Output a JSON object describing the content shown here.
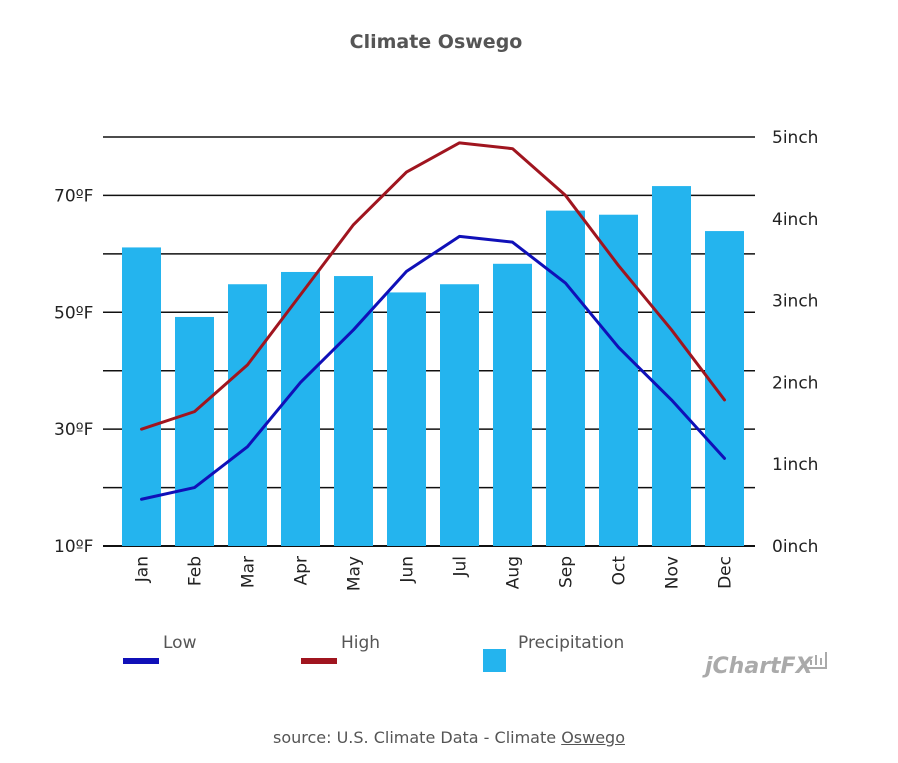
{
  "chart_data": {
    "type": "bar",
    "title": "Climate Oswego",
    "categories": [
      "Jan",
      "Feb",
      "Mar",
      "Apr",
      "May",
      "Jun",
      "Jul",
      "Aug",
      "Sep",
      "Oct",
      "Nov",
      "Dec"
    ],
    "series": [
      {
        "name": "Low",
        "type": "line",
        "axis": "left",
        "color": "#1010b8",
        "values": [
          18,
          20,
          27,
          38,
          47,
          57,
          63,
          62,
          55,
          44,
          35,
          25
        ]
      },
      {
        "name": "High",
        "type": "line",
        "axis": "left",
        "color": "#a0151f",
        "values": [
          30,
          33,
          41,
          53,
          65,
          74,
          79,
          78,
          70,
          58,
          47,
          35
        ]
      },
      {
        "name": "Precipitation",
        "type": "bar",
        "axis": "right",
        "color": "#24b4ee",
        "values": [
          3.65,
          2.8,
          3.2,
          3.35,
          3.3,
          3.1,
          3.2,
          3.45,
          4.1,
          4.05,
          4.4,
          3.85
        ]
      }
    ],
    "y_left": {
      "range": [
        10,
        80
      ],
      "ticks": [
        10,
        30,
        50,
        70
      ],
      "tick_labels": [
        "10ºF",
        "30ºF",
        "50ºF",
        "70ºF"
      ]
    },
    "y_right": {
      "range": [
        0,
        5
      ],
      "ticks": [
        0,
        1,
        2,
        3,
        4,
        5
      ],
      "tick_labels": [
        "0inch",
        "1inch",
        "2inch",
        "3inch",
        "4inch",
        "5inch"
      ]
    },
    "grid": true,
    "legend": "bottom"
  },
  "legend": {
    "low": "Low",
    "high": "High",
    "precipitation": "Precipitation"
  },
  "brand": "jChartFX",
  "source": {
    "prefix": "source: U.S. Climate Data - Climate ",
    "link": "Oswego"
  }
}
